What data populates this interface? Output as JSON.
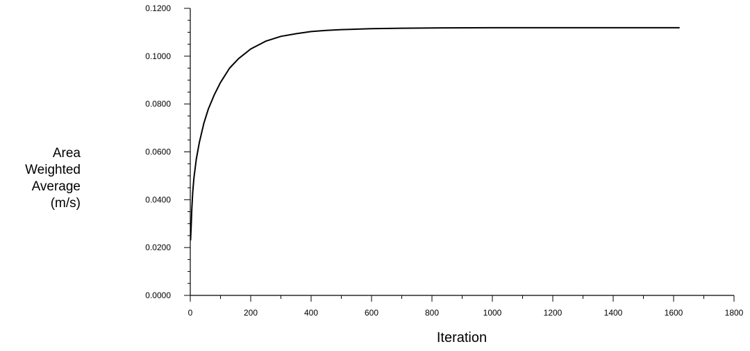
{
  "chart_data": {
    "type": "line",
    "title": "",
    "xlabel": "Iteration",
    "ylabel_lines": [
      "Area",
      "Weighted",
      "Average",
      "(m/s)"
    ],
    "xlim": [
      0,
      1800
    ],
    "ylim": [
      0,
      0.12
    ],
    "x_ticks": [
      0,
      200,
      400,
      600,
      800,
      1000,
      1200,
      1400,
      1600,
      1800
    ],
    "x_tick_labels": [
      "0",
      "200",
      "400",
      "600",
      "800",
      "1000",
      "1200",
      "1400",
      "1600",
      "1800"
    ],
    "y_ticks": [
      0,
      0.02,
      0.04,
      0.06,
      0.08,
      0.1,
      0.12
    ],
    "y_tick_labels": [
      "0.0000",
      "0.0200",
      "0.0400",
      "0.0600",
      "0.0800",
      "0.1000",
      "0.1200"
    ],
    "grid": false,
    "legend": "none",
    "series": [
      {
        "color": "#000000",
        "x": [
          1,
          3,
          5,
          8,
          12,
          20,
          30,
          45,
          60,
          80,
          100,
          130,
          160,
          200,
          250,
          300,
          350,
          400,
          450,
          500,
          600,
          700,
          800,
          1000,
          1200,
          1400,
          1620
        ],
        "y": [
          0.023,
          0.029,
          0.036,
          0.043,
          0.049,
          0.057,
          0.064,
          0.072,
          0.078,
          0.084,
          0.089,
          0.095,
          0.099,
          0.103,
          0.1063,
          0.1083,
          0.1094,
          0.1103,
          0.1108,
          0.1111,
          0.1115,
          0.1117,
          0.1118,
          0.1119,
          0.1119,
          0.1119,
          0.1119
        ]
      }
    ]
  }
}
